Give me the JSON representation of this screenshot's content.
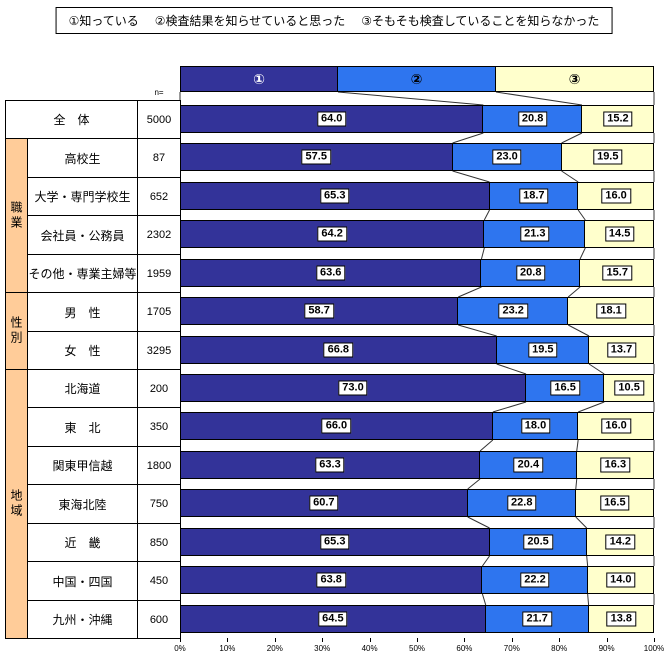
{
  "legend": {
    "items": [
      "①知っている",
      "②検査結果を知らせていると思った",
      "③そもそも検査していることを知らなかった"
    ]
  },
  "table": {
    "n_header": "n="
  },
  "chart_data": {
    "type": "bar",
    "orientation": "horizontal",
    "stacked": true,
    "xlim": [
      0,
      100
    ],
    "x_ticks": [
      "0%",
      "10%",
      "20%",
      "30%",
      "40%",
      "50%",
      "60%",
      "70%",
      "80%",
      "90%",
      "100%"
    ],
    "group_column_color": "#FFCC99",
    "series": [
      {
        "name": "①知っている",
        "marker": "①",
        "color": "#333399",
        "marker_color": "#FFFFFF"
      },
      {
        "name": "②検査結果を知らせていると思った",
        "marker": "②",
        "color": "#2E75EF",
        "marker_color": "#000000"
      },
      {
        "name": "③そもそも検査していることを知らなかった",
        "marker": "③",
        "color": "#FFFFCC",
        "marker_color": "#000000"
      }
    ],
    "row_groups": [
      {
        "label": "職業",
        "start": 1,
        "span": 4
      },
      {
        "label": "性別",
        "start": 5,
        "span": 2
      },
      {
        "label": "地域",
        "start": 7,
        "span": 7
      }
    ],
    "rows": [
      {
        "group": "",
        "label": "全　体",
        "n": "5000",
        "values": [
          64.0,
          20.8,
          15.2
        ]
      },
      {
        "group": "職業",
        "label": "高校生",
        "n": "87",
        "values": [
          57.5,
          23.0,
          19.5
        ]
      },
      {
        "group": "職業",
        "label": "大学・専門学校生",
        "n": "652",
        "values": [
          65.3,
          18.7,
          16.0
        ]
      },
      {
        "group": "職業",
        "label": "会社員・公務員",
        "n": "2302",
        "values": [
          64.2,
          21.3,
          14.5
        ]
      },
      {
        "group": "職業",
        "label": "その他・専業主婦等",
        "n": "1959",
        "values": [
          63.6,
          20.8,
          15.7
        ]
      },
      {
        "group": "性別",
        "label": "男　性",
        "n": "1705",
        "values": [
          58.7,
          23.2,
          18.1
        ]
      },
      {
        "group": "性別",
        "label": "女　性",
        "n": "3295",
        "values": [
          66.8,
          19.5,
          13.7
        ]
      },
      {
        "group": "地域",
        "label": "北海道",
        "n": "200",
        "values": [
          73.0,
          16.5,
          10.5
        ]
      },
      {
        "group": "地域",
        "label": "東　北",
        "n": "350",
        "values": [
          66.0,
          18.0,
          16.0
        ]
      },
      {
        "group": "地域",
        "label": "関東甲信越",
        "n": "1800",
        "values": [
          63.3,
          20.4,
          16.3
        ]
      },
      {
        "group": "地域",
        "label": "東海北陸",
        "n": "750",
        "values": [
          60.7,
          22.8,
          16.5
        ]
      },
      {
        "group": "地域",
        "label": "近　畿",
        "n": "850",
        "values": [
          65.3,
          20.5,
          14.2
        ]
      },
      {
        "group": "地域",
        "label": "中国・四国",
        "n": "450",
        "values": [
          63.8,
          22.2,
          14.0
        ]
      },
      {
        "group": "地域",
        "label": "九州・沖縄",
        "n": "600",
        "values": [
          64.5,
          21.7,
          13.8
        ]
      }
    ]
  }
}
